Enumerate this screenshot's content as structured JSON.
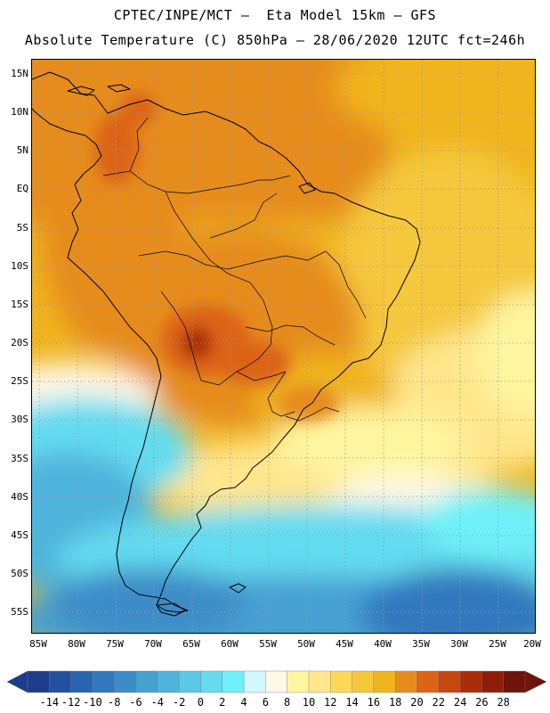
{
  "header": {
    "line1": "CPTEC/INPE/MCT –  Eta Model 15km – GFS",
    "line2": "Absolute Temperature (C) 850hPa – 28/06/2020 12UTC fct=246h"
  },
  "map": {
    "lat_labels": [
      "15N",
      "10N",
      "5N",
      "EQ",
      "5S",
      "10S",
      "15S",
      "20S",
      "25S",
      "30S",
      "35S",
      "40S",
      "45S",
      "50S",
      "55S"
    ],
    "lon_labels": [
      "85W",
      "80W",
      "75W",
      "70W",
      "65W",
      "60W",
      "55W",
      "50W",
      "45W",
      "40W",
      "35W",
      "30W",
      "25W",
      "20W"
    ],
    "lat_range": [
      17,
      -57
    ],
    "lon_range": [
      -85.5,
      -19.5
    ]
  },
  "legend": {
    "labels": [
      "-14",
      "-12",
      "-10",
      "-8",
      "-6",
      "-4",
      "-2",
      "0",
      "2",
      "4",
      "6",
      "8",
      "10",
      "12",
      "14",
      "16",
      "18",
      "20",
      "22",
      "24",
      "26",
      "28"
    ],
    "colors": [
      "#1e3c8c",
      "#2350a0",
      "#2a64b0",
      "#3278be",
      "#3c8cc8",
      "#46a0d2",
      "#4fb4dc",
      "#5ac8e6",
      "#64dcf0",
      "#70f0f8",
      "#d2f8ff",
      "#fff8e6",
      "#fff5a0",
      "#ffe68c",
      "#ffd85a",
      "#f5c83c",
      "#f0b41e",
      "#e68c1e",
      "#dc6414",
      "#c8460f",
      "#aa2d0a",
      "#8c1e0a",
      "#6e140a"
    ]
  }
}
